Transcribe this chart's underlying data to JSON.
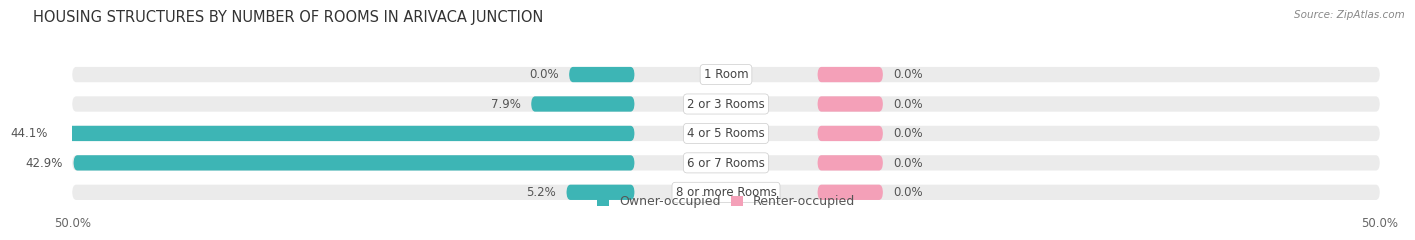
{
  "title": "HOUSING STRUCTURES BY NUMBER OF ROOMS IN ARIVACA JUNCTION",
  "source": "Source: ZipAtlas.com",
  "categories": [
    "1 Room",
    "2 or 3 Rooms",
    "4 or 5 Rooms",
    "6 or 7 Rooms",
    "8 or more Rooms"
  ],
  "owner_values": [
    0.0,
    7.9,
    44.1,
    42.9,
    5.2
  ],
  "renter_values": [
    0.0,
    0.0,
    0.0,
    0.0,
    0.0
  ],
  "renter_visual": [
    5.0,
    5.0,
    5.0,
    5.0,
    5.0
  ],
  "owner_color": "#3db5b5",
  "renter_color": "#f4a0b8",
  "bar_bg_color": "#ebebeb",
  "axis_max": 50.0,
  "axis_min": -50.0,
  "background_color": "#ffffff",
  "label_fontsize": 8.5,
  "title_fontsize": 10.5,
  "source_fontsize": 7.5,
  "legend_fontsize": 9
}
